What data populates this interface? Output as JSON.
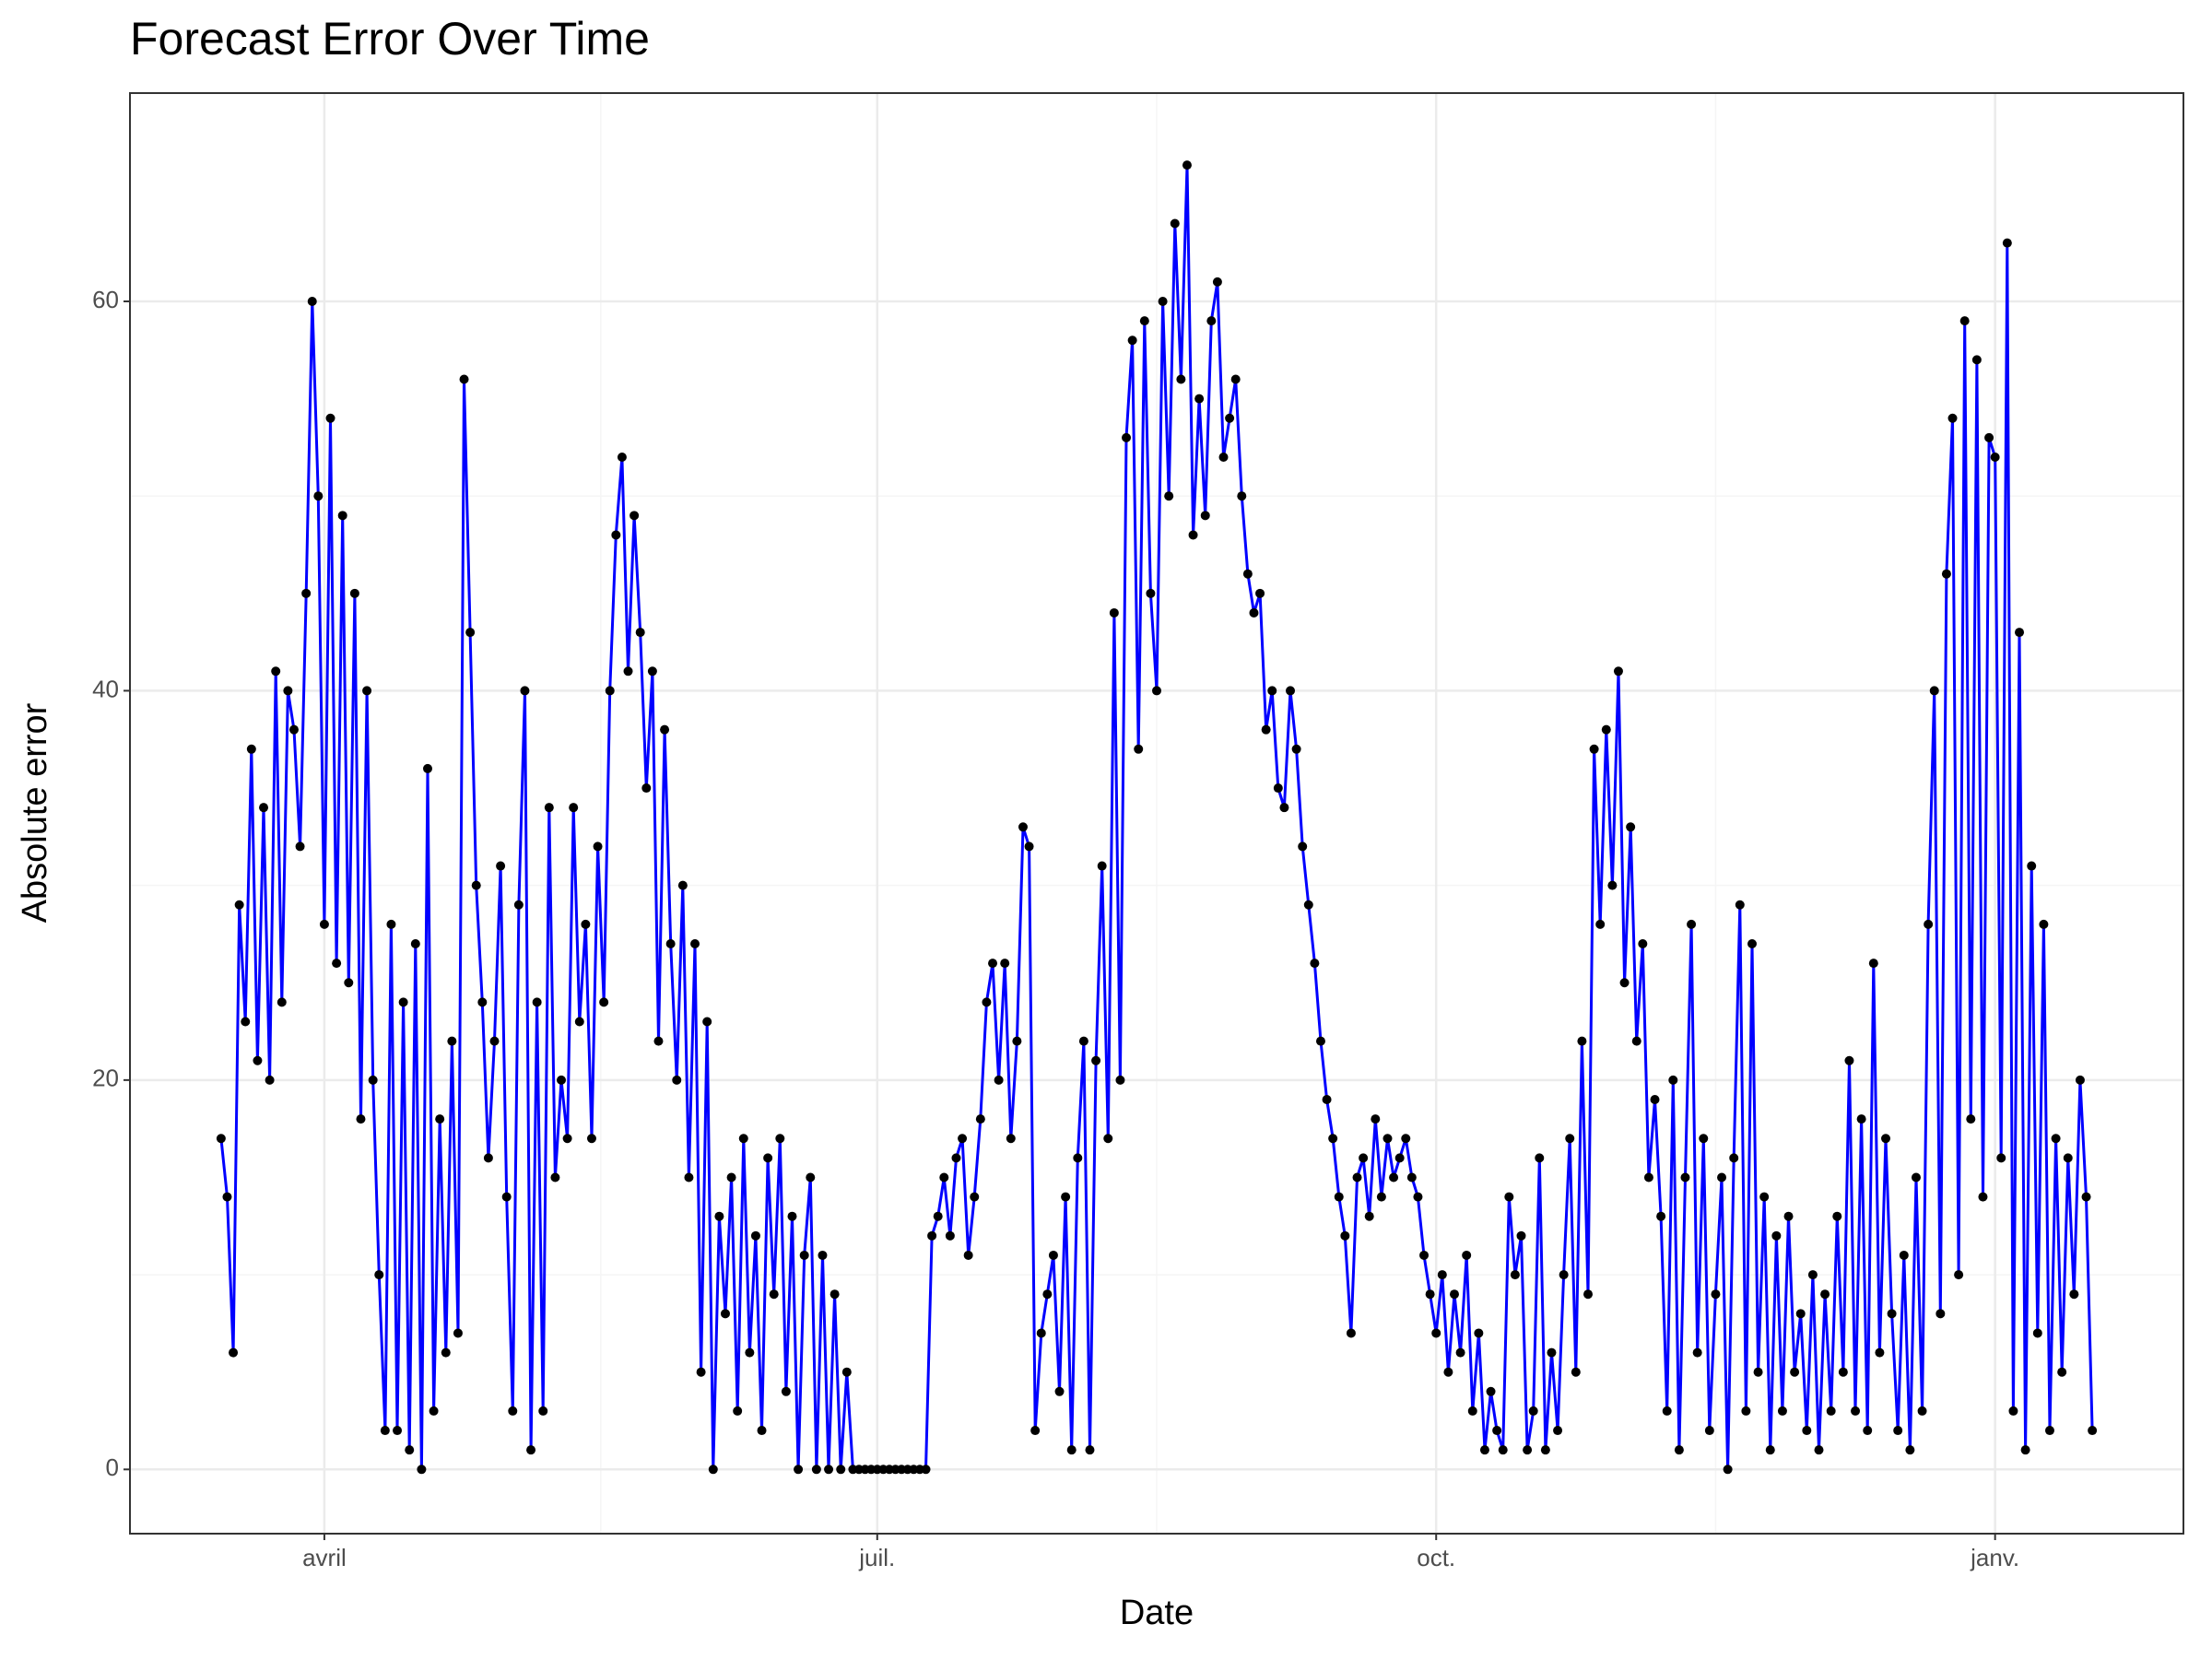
{
  "chart_data": {
    "type": "line",
    "title": "Forecast Error Over Time",
    "x_label": "Date",
    "y_label": "Absolute error",
    "x": [
      -17,
      -16,
      -15,
      -14,
      -13,
      -12,
      -11,
      -10,
      -9,
      -8,
      -7,
      -6,
      -5,
      -4,
      -3,
      -2,
      -1,
      0,
      1,
      2,
      3,
      4,
      5,
      6,
      7,
      8,
      9,
      10,
      11,
      12,
      13,
      14,
      15,
      16,
      17,
      18,
      19,
      20,
      21,
      22,
      23,
      24,
      25,
      26,
      27,
      28,
      29,
      30,
      31,
      32,
      33,
      34,
      35,
      36,
      37,
      38,
      39,
      40,
      41,
      42,
      43,
      44,
      45,
      46,
      47,
      48,
      49,
      50,
      51,
      52,
      53,
      54,
      55,
      56,
      57,
      58,
      59,
      60,
      61,
      62,
      63,
      64,
      65,
      66,
      67,
      68,
      69,
      70,
      71,
      72,
      73,
      74,
      75,
      76,
      77,
      78,
      79,
      80,
      81,
      82,
      83,
      84,
      85,
      86,
      87,
      88,
      89,
      90,
      91,
      92,
      93,
      94,
      95,
      96,
      97,
      98,
      99,
      100,
      101,
      102,
      103,
      104,
      105,
      106,
      107,
      108,
      109,
      110,
      111,
      112,
      113,
      114,
      115,
      116,
      117,
      118,
      119,
      120,
      121,
      122,
      123,
      124,
      125,
      126,
      127,
      128,
      129,
      130,
      131,
      132,
      133,
      134,
      135,
      136,
      137,
      138,
      139,
      140,
      141,
      142,
      143,
      144,
      145,
      146,
      147,
      148,
      149,
      150,
      151,
      152,
      153,
      154,
      155,
      156,
      157,
      158,
      159,
      160,
      161,
      162,
      163,
      164,
      165,
      166,
      167,
      168,
      169,
      170,
      171,
      172,
      173,
      174,
      175,
      176,
      177,
      178,
      179,
      180,
      181,
      182,
      183,
      184,
      185,
      186,
      187,
      188,
      189,
      190,
      191,
      192,
      193,
      194,
      195,
      196,
      197,
      198,
      199,
      200,
      201,
      202,
      203,
      204,
      205,
      206,
      207,
      208,
      209,
      210,
      211,
      212,
      213,
      214,
      215,
      216,
      217,
      218,
      219,
      220,
      221,
      222,
      223,
      224,
      225,
      226,
      227,
      228,
      229,
      230,
      231,
      232,
      233,
      234,
      235,
      236,
      237,
      238,
      239,
      240,
      241,
      242,
      243,
      244,
      245,
      246,
      247,
      248,
      249,
      250,
      251,
      252,
      253,
      254,
      255,
      256,
      257,
      258,
      259,
      260,
      261,
      262,
      263,
      264,
      265,
      266,
      267,
      268,
      269,
      270,
      271,
      272,
      273,
      274,
      275,
      276,
      277,
      278,
      279,
      280,
      281,
      282,
      283,
      284,
      285,
      286,
      287,
      288,
      289,
      290,
      291
    ],
    "series": [
      {
        "name": "Absolute error",
        "color": "#0000ff",
        "marker_color": "#000000",
        "values": [
          17,
          14,
          6,
          29,
          23,
          37,
          21,
          34,
          20,
          41,
          24,
          40,
          38,
          32,
          45,
          60,
          50,
          28,
          54,
          26,
          49,
          25,
          45,
          18,
          40,
          20,
          10,
          2,
          28,
          2,
          24,
          1,
          27,
          0,
          36,
          3,
          18,
          6,
          22,
          7,
          56,
          43,
          30,
          24,
          16,
          22,
          31,
          14,
          3,
          29,
          40,
          1,
          24,
          3,
          34,
          15,
          20,
          17,
          34,
          23,
          28,
          17,
          32,
          24,
          40,
          48,
          52,
          41,
          49,
          43,
          35,
          41,
          22,
          38,
          27,
          20,
          30,
          15,
          27,
          5,
          23,
          0,
          13,
          8,
          15,
          3,
          17,
          6,
          12,
          2,
          16,
          9,
          17,
          4,
          13,
          0,
          11,
          15,
          0,
          11,
          0,
          9,
          0,
          5,
          0,
          0,
          0,
          0,
          0,
          0,
          0,
          0,
          0,
          0,
          0,
          0,
          0,
          12,
          13,
          15,
          12,
          16,
          17,
          11,
          14,
          18,
          24,
          26,
          20,
          26,
          17,
          22,
          33,
          32,
          2,
          7,
          9,
          11,
          4,
          14,
          1,
          16,
          22,
          1,
          21,
          31,
          17,
          44,
          20,
          53,
          58,
          37,
          59,
          45,
          40,
          60,
          50,
          64,
          56,
          67,
          48,
          55,
          49,
          59,
          61,
          52,
          54,
          56,
          50,
          46,
          44,
          45,
          38,
          40,
          35,
          34,
          40,
          37,
          32,
          29,
          26,
          22,
          19,
          17,
          14,
          12,
          7,
          15,
          16,
          13,
          18,
          14,
          17,
          15,
          16,
          17,
          15,
          14,
          11,
          9,
          7,
          10,
          5,
          9,
          6,
          11,
          3,
          7,
          1,
          4,
          2,
          1,
          14,
          10,
          12,
          1,
          3,
          16,
          1,
          6,
          2,
          10,
          17,
          5,
          22,
          9,
          37,
          28,
          38,
          30,
          41,
          25,
          33,
          22,
          27,
          15,
          19,
          13,
          3,
          20,
          1,
          15,
          28,
          6,
          17,
          2,
          9,
          15,
          0,
          16,
          29,
          3,
          27,
          5,
          14,
          1,
          12,
          3,
          13,
          5,
          8,
          2,
          10,
          1,
          9,
          3,
          13,
          5,
          21,
          3,
          18,
          2,
          26,
          6,
          17,
          8,
          2,
          11,
          1,
          15,
          3,
          28,
          40,
          8,
          46,
          54,
          10,
          59,
          18,
          57,
          14,
          53,
          52,
          16,
          63,
          3,
          43,
          1,
          31,
          7,
          28,
          2,
          17,
          5,
          16,
          9,
          20,
          14,
          2
        ]
      }
    ],
    "xlim": [
      -32,
      306
    ],
    "xticks": [
      {
        "value": 0,
        "label": "avril"
      },
      {
        "value": 91,
        "label": "juil."
      },
      {
        "value": 183,
        "label": "oct."
      },
      {
        "value": 275,
        "label": "janv."
      }
    ],
    "ylim": [
      -3.3,
      70.7
    ],
    "yticks": [
      0,
      20,
      40,
      60
    ],
    "grid": true
  }
}
